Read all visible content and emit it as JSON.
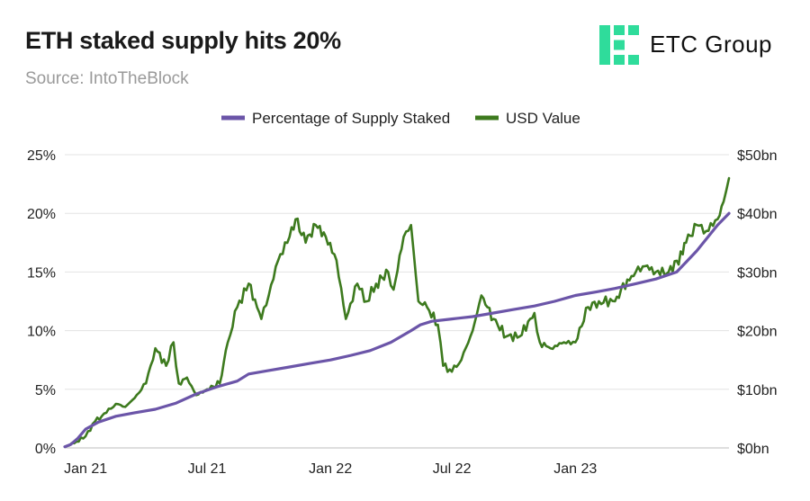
{
  "header": {
    "title": "ETH staked supply hits 20%",
    "source": "Source: IntoTheBlock"
  },
  "logo": {
    "text": "ETC Group",
    "color": "#2fdc9b"
  },
  "chart_data": {
    "type": "line",
    "title": "ETH staked supply hits 20%",
    "xlabel": "",
    "ylabel": "",
    "x_ticks": [
      "Jan 21",
      "Jul 21",
      "Jan 22",
      "Jul 22",
      "Jan 23"
    ],
    "x_tick_dates": [
      "2021-01-01",
      "2021-07-01",
      "2022-01-01",
      "2022-07-01",
      "2023-01-01"
    ],
    "x_range": [
      "2020-12-01",
      "2023-08-18"
    ],
    "y_left": {
      "ticks": [
        "0%",
        "5%",
        "10%",
        "15%",
        "20%",
        "25%"
      ],
      "range": [
        0,
        25
      ]
    },
    "y_right": {
      "ticks": [
        "$0bn",
        "$10bn",
        "$20bn",
        "$30bn",
        "$40bn",
        "$50bn"
      ],
      "range": [
        0,
        50
      ]
    },
    "grid": true,
    "legend_position": "top-center",
    "series": [
      {
        "name": "Percentage of Supply Staked",
        "axis": "left",
        "color": "#6b55a8",
        "x": [
          "2020-12-01",
          "2020-12-10",
          "2020-12-20",
          "2021-01-01",
          "2021-01-20",
          "2021-02-15",
          "2021-03-15",
          "2021-04-15",
          "2021-05-15",
          "2021-06-15",
          "2021-07-15",
          "2021-08-15",
          "2021-09-01",
          "2021-10-01",
          "2021-11-01",
          "2021-12-01",
          "2022-01-01",
          "2022-02-01",
          "2022-03-01",
          "2022-04-01",
          "2022-05-01",
          "2022-05-15",
          "2022-06-01",
          "2022-07-01",
          "2022-08-01",
          "2022-09-01",
          "2022-10-01",
          "2022-11-01",
          "2022-12-01",
          "2023-01-01",
          "2023-02-01",
          "2023-03-01",
          "2023-04-01",
          "2023-05-01",
          "2023-06-01",
          "2023-07-01",
          "2023-08-01",
          "2023-08-18"
        ],
        "values": [
          0.1,
          0.3,
          0.8,
          1.6,
          2.2,
          2.7,
          3.0,
          3.3,
          3.8,
          4.6,
          5.2,
          5.7,
          6.3,
          6.6,
          6.9,
          7.2,
          7.5,
          7.9,
          8.3,
          9.0,
          10.0,
          10.5,
          10.8,
          11.0,
          11.2,
          11.5,
          11.8,
          12.1,
          12.5,
          13.0,
          13.3,
          13.6,
          14.0,
          14.4,
          15.0,
          16.8,
          19.0,
          20.0
        ]
      },
      {
        "name": "USD Value",
        "axis": "right",
        "color": "#3d7a1e",
        "x": [
          "2020-12-01",
          "2020-12-15",
          "2021-01-01",
          "2021-01-15",
          "2021-02-01",
          "2021-02-15",
          "2021-03-01",
          "2021-03-15",
          "2021-04-01",
          "2021-04-15",
          "2021-05-01",
          "2021-05-12",
          "2021-05-20",
          "2021-06-01",
          "2021-06-15",
          "2021-07-01",
          "2021-07-20",
          "2021-08-01",
          "2021-08-15",
          "2021-09-01",
          "2021-09-20",
          "2021-10-01",
          "2021-10-15",
          "2021-11-01",
          "2021-11-10",
          "2021-11-25",
          "2021-12-10",
          "2021-12-25",
          "2022-01-10",
          "2022-01-24",
          "2022-02-10",
          "2022-02-24",
          "2022-03-10",
          "2022-03-28",
          "2022-04-05",
          "2022-04-20",
          "2022-05-01",
          "2022-05-12",
          "2022-05-25",
          "2022-06-10",
          "2022-06-18",
          "2022-07-01",
          "2022-07-15",
          "2022-08-01",
          "2022-08-14",
          "2022-09-01",
          "2022-09-20",
          "2022-10-10",
          "2022-11-01",
          "2022-11-09",
          "2022-11-25",
          "2022-12-15",
          "2023-01-01",
          "2023-01-20",
          "2023-02-05",
          "2023-03-01",
          "2023-03-10",
          "2023-04-01",
          "2023-04-15",
          "2023-05-01",
          "2023-05-20",
          "2023-06-10",
          "2023-06-15",
          "2023-07-01",
          "2023-07-15",
          "2023-08-01",
          "2023-08-10",
          "2023-08-18"
        ],
        "values": [
          0.2,
          0.8,
          2.0,
          4.5,
          6.0,
          7.5,
          7.0,
          8.5,
          11.0,
          17.0,
          14.0,
          18.0,
          11.0,
          12.0,
          9.0,
          10.0,
          11.0,
          18.0,
          24.0,
          28.0,
          22.0,
          26.0,
          32.0,
          36.0,
          39.0,
          35.0,
          38.0,
          36.0,
          32.0,
          22.0,
          28.0,
          25.0,
          28.0,
          30.0,
          27.0,
          36.0,
          38.0,
          25.0,
          24.0,
          21.0,
          14.0,
          13.0,
          15.0,
          20.0,
          26.0,
          22.0,
          19.0,
          19.0,
          23.0,
          18.0,
          17.0,
          18.0,
          18.0,
          24.0,
          25.0,
          25.0,
          27.0,
          30.0,
          31.0,
          30.0,
          30.0,
          33.0,
          35.0,
          38.0,
          37.0,
          39.0,
          42.0,
          46.0
        ]
      }
    ]
  }
}
